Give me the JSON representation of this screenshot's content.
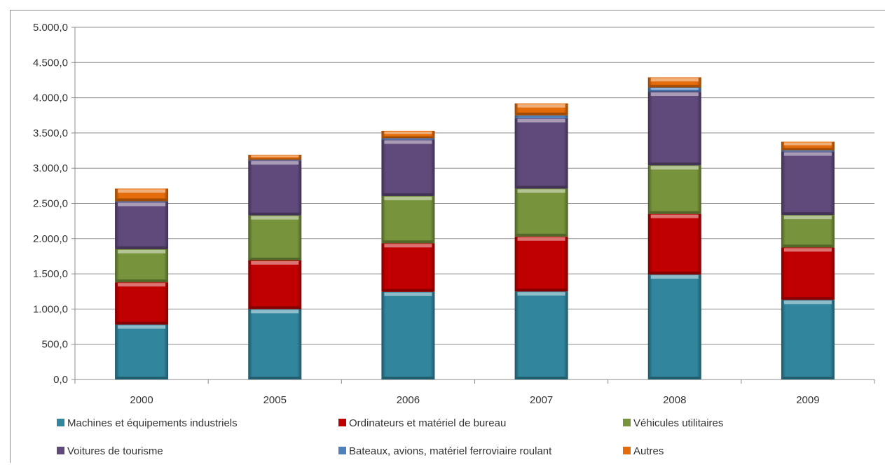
{
  "chart_data": {
    "type": "bar",
    "stacked": true,
    "categories": [
      "2000",
      "2005",
      "2006",
      "2007",
      "2008",
      "2009"
    ],
    "ylim": [
      0,
      5000
    ],
    "ytick_values": [
      0,
      500,
      1000,
      1500,
      2000,
      2500,
      3000,
      3500,
      4000,
      4500,
      5000
    ],
    "ytick_labels": [
      "0,0",
      "500,0",
      "1.000,0",
      "1.500,0",
      "2.000,0",
      "2.500,0",
      "3.000,0",
      "3.500,0",
      "4.000,0",
      "4.500,0",
      "5.000,0"
    ],
    "grid": true,
    "legend_position": "bottom",
    "title": "",
    "xlabel": "",
    "ylabel": "",
    "series": [
      {
        "name": "Machines et équipements industriels",
        "color": "#31859C",
        "values": [
          780,
          1000,
          1245,
          1250,
          1490,
          1130
        ]
      },
      {
        "name": "Ordinateurs et matériel de bureau",
        "color": "#C00000",
        "values": [
          600,
          690,
          690,
          780,
          860,
          745
        ]
      },
      {
        "name": "Véhicules utilitaires",
        "color": "#77933C",
        "values": [
          470,
          640,
          670,
          680,
          690,
          460
        ]
      },
      {
        "name": "Voitures de tourisme",
        "color": "#604A7B",
        "values": [
          670,
          780,
          800,
          1000,
          1045,
          900
        ]
      },
      {
        "name": "Bateaux, avions, matériel ferroviaire roulant",
        "color": "#4F81BD",
        "values": [
          10,
          10,
          20,
          40,
          60,
          20
        ]
      },
      {
        "name": "Autres",
        "color": "#E46C0A",
        "values": [
          180,
          70,
          105,
          170,
          145,
          120
        ]
      }
    ]
  }
}
